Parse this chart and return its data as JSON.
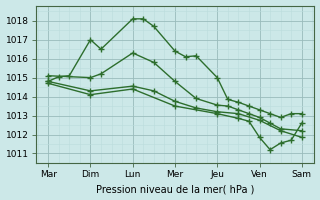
{
  "xlabel": "Pression niveau de la mer( hPa )",
  "xtick_labels": [
    "Mar",
    "Dim",
    "Lun",
    "Mer",
    "Jeu",
    "Ven",
    "Sam"
  ],
  "xtick_positions": [
    0,
    1,
    2,
    3,
    4,
    5,
    6
  ],
  "ylim": [
    1010.5,
    1018.8
  ],
  "yticks": [
    1011,
    1012,
    1013,
    1014,
    1015,
    1016,
    1017,
    1018
  ],
  "bg_color": "#cce8e8",
  "grid_major_color": "#99bbbb",
  "grid_minor_color": "#bbdddd",
  "line_color": "#2d6e2d",
  "line1_x": [
    0.0,
    0.25,
    0.5,
    1.0,
    1.25,
    2.0,
    2.25,
    2.5,
    3.0,
    3.25,
    3.5,
    4.0,
    4.25,
    4.5,
    4.75,
    5.0,
    5.25,
    5.5,
    5.75,
    6.0
  ],
  "line1_y": [
    1014.8,
    1015.05,
    1015.1,
    1017.0,
    1016.5,
    1018.1,
    1018.1,
    1017.7,
    1016.4,
    1016.1,
    1016.15,
    1015.0,
    1013.85,
    1013.7,
    1013.5,
    1013.3,
    1013.1,
    1012.9,
    1013.1,
    1013.1
  ],
  "line2_x": [
    0.0,
    1.0,
    1.25,
    2.0,
    2.5,
    3.0,
    3.5,
    4.0,
    4.25,
    4.5,
    4.75,
    5.0,
    5.25,
    5.5,
    6.0
  ],
  "line2_y": [
    1015.1,
    1015.0,
    1015.2,
    1016.3,
    1015.8,
    1014.8,
    1013.9,
    1013.55,
    1013.5,
    1013.3,
    1013.1,
    1012.9,
    1012.6,
    1012.3,
    1012.2
  ],
  "line3_x": [
    0.0,
    1.0,
    2.0,
    2.5,
    3.0,
    3.5,
    4.0,
    4.5,
    5.0,
    5.5,
    6.0
  ],
  "line3_y": [
    1014.8,
    1014.3,
    1014.55,
    1014.3,
    1013.75,
    1013.4,
    1013.2,
    1013.1,
    1012.75,
    1012.2,
    1011.85
  ],
  "line4_x": [
    0.0,
    1.0,
    2.0,
    3.0,
    4.0,
    4.5,
    4.75,
    5.0,
    5.25,
    5.5,
    5.75,
    6.0
  ],
  "line4_y": [
    1014.7,
    1014.1,
    1014.4,
    1013.5,
    1013.1,
    1012.85,
    1012.7,
    1011.85,
    1011.2,
    1011.55,
    1011.7,
    1012.6
  ]
}
